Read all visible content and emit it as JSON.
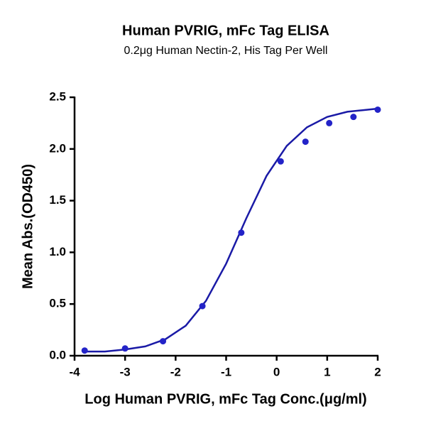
{
  "chart_data": {
    "type": "scatter",
    "title": "Human PVRIG, mFc Tag ELISA",
    "subtitle": "0.2μg Human Nectin-2, His Tag Per Well",
    "x_label": "Log Human PVRIG, mFc Tag Conc.(μg/ml)",
    "y_label": "Mean Abs.(OD450)",
    "points": {
      "color": "#2323c8",
      "x": [
        -3.8,
        -3.0,
        -2.25,
        -1.47,
        -0.7,
        0.08,
        0.57,
        1.04,
        1.52,
        2.0
      ],
      "values": [
        0.05,
        0.07,
        0.14,
        0.48,
        1.19,
        1.88,
        2.07,
        2.25,
        2.31,
        2.38
      ]
    },
    "curve": {
      "color": "#1a1aa6",
      "x": [
        -3.8,
        -3.4,
        -3.0,
        -2.6,
        -2.2,
        -1.8,
        -1.4,
        -1.0,
        -0.6,
        -0.2,
        0.2,
        0.6,
        1.0,
        1.4,
        1.8,
        2.0
      ],
      "values": [
        0.04,
        0.04,
        0.06,
        0.09,
        0.16,
        0.29,
        0.53,
        0.89,
        1.33,
        1.74,
        2.03,
        2.21,
        2.31,
        2.36,
        2.38,
        2.39
      ]
    },
    "xlim": [
      -4,
      2
    ],
    "xticks": [
      -4,
      -3,
      -2,
      -1,
      0,
      1,
      2
    ],
    "ylim": [
      0,
      2.5
    ],
    "yticks": [
      {
        "value": 0,
        "label": "0.0"
      },
      0.5,
      {
        "value": 1,
        "label": "1.0"
      },
      1.5,
      {
        "value": 2,
        "label": "2.0"
      },
      2.5
    ]
  }
}
